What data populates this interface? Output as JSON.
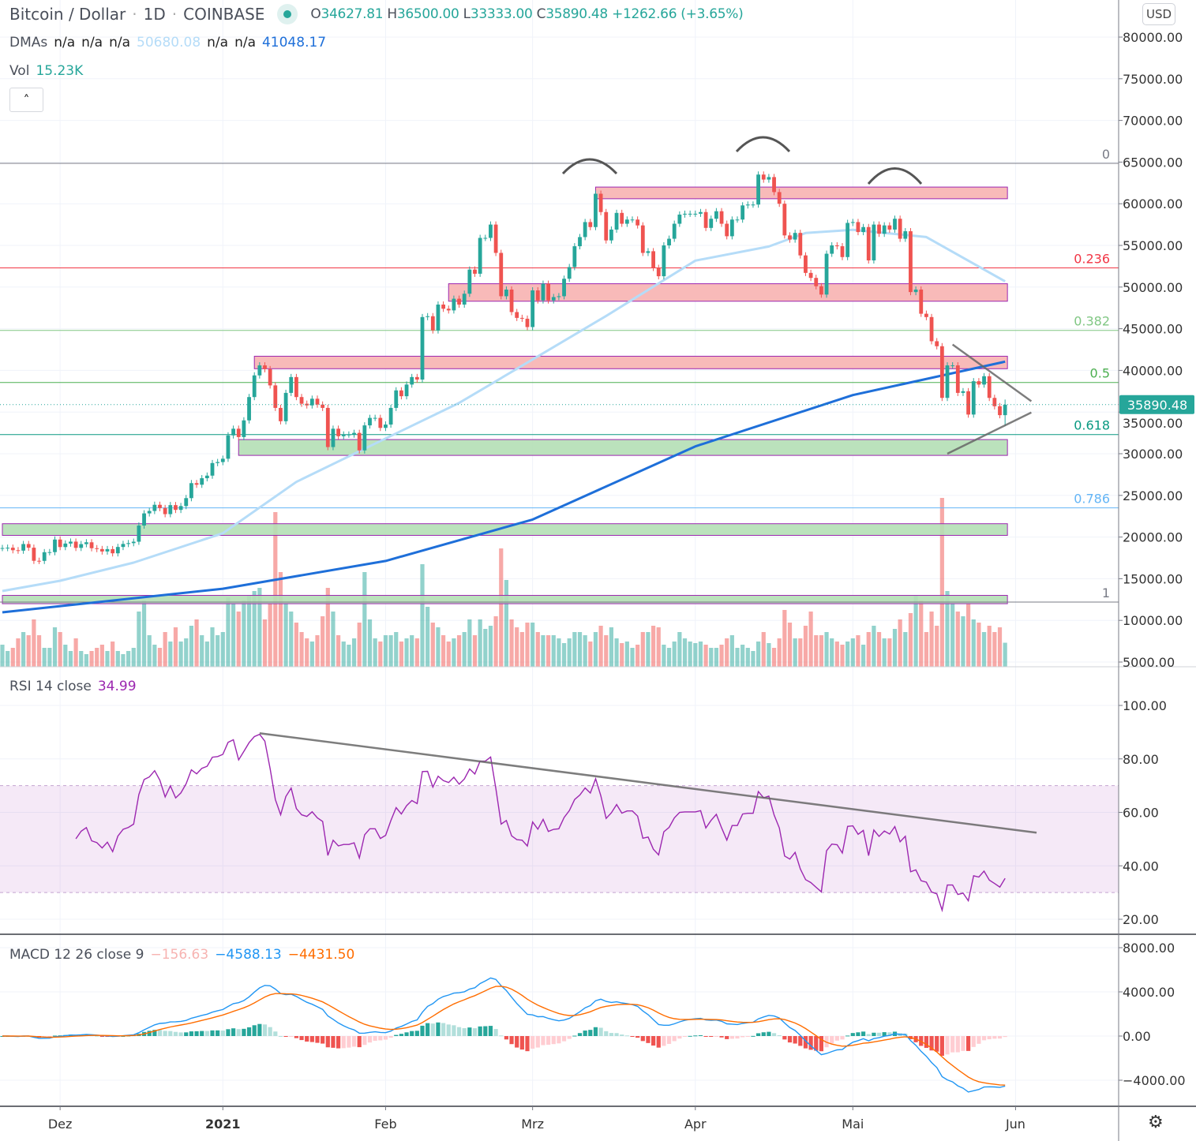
{
  "header": {
    "symbol": "Bitcoin / Dollar",
    "interval": "1D",
    "exchange": "COINBASE",
    "o_label": "O",
    "o_value": "34627.81",
    "h_label": "H",
    "h_value": "36500.00",
    "l_label": "L",
    "l_value": "33333.00",
    "c_label": "C",
    "c_value": "35890.48",
    "change": "+1262.66 (+3.65%)",
    "dmas_label": "DMAs",
    "dmas_values": [
      "n/a",
      "n/a",
      "n/a",
      "50680.08",
      "n/a",
      "n/a",
      "41048.17"
    ],
    "vol_label": "Vol",
    "vol_value": "15.23K",
    "collapse_icon": "chevron-up",
    "currency": "USD"
  },
  "colors": {
    "up": "#26a69a",
    "down": "#ef5350",
    "ma50": "#b5dcf8",
    "ma200": "#1e6fd9",
    "rsi": "#9c27b0",
    "macd": "#2196f3",
    "signal": "#ff6d00",
    "zone_red": "#f7b3b1",
    "zone_green": "#b4dfb5",
    "zone_border": "#9c27b0"
  },
  "chart_data": [
    {
      "type": "candlestick",
      "title": "Bitcoin / Dollar · 1D · COINBASE",
      "start_date": "2020-11-20",
      "y_ticks": [
        80000,
        75000,
        70000,
        65000,
        60000,
        55000,
        50000,
        45000,
        40000,
        35000,
        30000,
        25000,
        20000,
        15000,
        10000,
        5000
      ],
      "y_tick_labels": [
        "80000.00",
        "75000.00",
        "70000.00",
        "65000.00",
        "60000.00",
        "55000.00",
        "50000.00",
        "45000.00",
        "40000.00",
        "35000.00",
        "30000.00",
        "25000.00",
        "20000.00",
        "15000.00",
        "10000.00",
        "5000.00"
      ],
      "x_ticks": [
        {
          "date": "2020-12-01",
          "label": "Dez"
        },
        {
          "date": "2021-01-01",
          "label": "2021"
        },
        {
          "date": "2021-02-01",
          "label": "Feb"
        },
        {
          "date": "2021-03-01",
          "label": "Mrz"
        },
        {
          "date": "2021-04-01",
          "label": "Apr"
        },
        {
          "date": "2021-05-01",
          "label": "Mai"
        },
        {
          "date": "2021-06-01",
          "label": "Jun"
        }
      ],
      "close": [
        18680,
        18720,
        18420,
        18370,
        19160,
        18720,
        17150,
        17140,
        18180,
        18190,
        19700,
        18800,
        19220,
        19450,
        18700,
        19150,
        19370,
        18660,
        18560,
        18270,
        18550,
        18050,
        18810,
        19170,
        19270,
        19440,
        21380,
        22840,
        23130,
        23870,
        23480,
        22750,
        23830,
        23260,
        23720,
        24670,
        26470,
        26280,
        27060,
        27370,
        28880,
        29000,
        29400,
        32200,
        33000,
        32000,
        34000,
        36800,
        39400,
        40600,
        40150,
        38200,
        35500,
        33900,
        37300,
        39200,
        36800,
        36000,
        35800,
        36600,
        35900,
        35500,
        30800,
        33000,
        32100,
        32300,
        32300,
        32500,
        30400,
        33400,
        34300,
        34300,
        33100,
        33500,
        35500,
        37600,
        36900,
        38300,
        39200,
        38900,
        46400,
        46500,
        44800,
        47900,
        47400,
        47200,
        48600,
        47900,
        49200,
        52100,
        51600,
        55900,
        55900,
        57500,
        54100,
        48900,
        49700,
        47000,
        46300,
        46200,
        45200,
        49600,
        48400,
        50400,
        48400,
        48800,
        48900,
        51000,
        52400,
        54900,
        56000,
        57800,
        57200,
        61200,
        59000,
        55600,
        56900,
        58900,
        57600,
        58100,
        58100,
        57400,
        54100,
        54300,
        52300,
        51300,
        55000,
        55800,
        57600,
        58700,
        58800,
        58800,
        58800,
        59000,
        57100,
        58200,
        59100,
        57600,
        56100,
        58100,
        58100,
        59800,
        59900,
        59900,
        63500,
        62900,
        63200,
        61400,
        60000,
        56200,
        55700,
        56500,
        53800,
        51700,
        51100,
        50100,
        49100,
        54000,
        55000,
        54900,
        53600,
        57700,
        57800,
        56600,
        57200,
        53200,
        57500,
        56400,
        57400,
        56900,
        58200,
        55800,
        56700,
        49400,
        49700,
        46800,
        46400,
        43500,
        42900,
        36700,
        40600,
        40600,
        37300,
        37500,
        34700,
        38700,
        38300,
        39300,
        36700,
        35700,
        34627.81,
        35890.48
      ],
      "last": {
        "open": 34627.81,
        "high": 36500.0,
        "low": 33333.0,
        "close": 35890.48,
        "label": "35890.48"
      },
      "volume_k": [
        14,
        10,
        12,
        18,
        22,
        20,
        30,
        20,
        12,
        12,
        25,
        22,
        14,
        10,
        18,
        10,
        8,
        10,
        12,
        14,
        10,
        16,
        10,
        8,
        10,
        12,
        35,
        42,
        20,
        14,
        12,
        22,
        16,
        25,
        16,
        18,
        26,
        30,
        20,
        16,
        25,
        20,
        22,
        44,
        40,
        35,
        42,
        45,
        48,
        50,
        30,
        40,
        98,
        60,
        40,
        35,
        28,
        22,
        18,
        16,
        20,
        32,
        50,
        35,
        20,
        16,
        14,
        18,
        28,
        60,
        30,
        18,
        16,
        20,
        20,
        22,
        16,
        18,
        20,
        18,
        65,
        38,
        28,
        25,
        20,
        16,
        18,
        20,
        22,
        30,
        20,
        30,
        24,
        26,
        32,
        75,
        55,
        30,
        25,
        22,
        28,
        28,
        22,
        20,
        20,
        20,
        18,
        15,
        18,
        22,
        22,
        20,
        16,
        22,
        26,
        20,
        25,
        18,
        15,
        16,
        12,
        14,
        22,
        22,
        26,
        25,
        14,
        12,
        16,
        22,
        18,
        16,
        15,
        16,
        14,
        12,
        12,
        14,
        18,
        20,
        12,
        14,
        12,
        10,
        16,
        22,
        15,
        12,
        18,
        36,
        28,
        18,
        18,
        26,
        35,
        20,
        20,
        22,
        18,
        16,
        14,
        16,
        18,
        20,
        14,
        22,
        26,
        22,
        18,
        18,
        24,
        30,
        22,
        34,
        45,
        42,
        22,
        35,
        26,
        107,
        48,
        40,
        35,
        32,
        40,
        30,
        28,
        22,
        26,
        22,
        25,
        15.23
      ],
      "ma50": [
        [
          "2020-11-20",
          13520
        ],
        [
          "2020-12-01",
          14750
        ],
        [
          "2020-12-15",
          16930
        ],
        [
          "2021-01-01",
          20450
        ],
        [
          "2021-01-15",
          26620
        ],
        [
          "2021-02-01",
          31830
        ],
        [
          "2021-02-15",
          36100
        ],
        [
          "2021-03-01",
          41310
        ],
        [
          "2021-03-15",
          46530
        ],
        [
          "2021-04-01",
          53170
        ],
        [
          "2021-04-15",
          54870
        ],
        [
          "2021-04-22",
          56490
        ],
        [
          "2021-05-01",
          56870
        ],
        [
          "2021-05-15",
          56000
        ],
        [
          "2021-05-30",
          50680.08
        ]
      ],
      "ma200": [
        [
          "2020-11-20",
          10970
        ],
        [
          "2021-01-01",
          13800
        ],
        [
          "2021-02-01",
          17130
        ],
        [
          "2021-03-01",
          22100
        ],
        [
          "2021-04-01",
          30880
        ],
        [
          "2021-05-01",
          37040
        ],
        [
          "2021-05-30",
          41048.17
        ]
      ],
      "fib_levels": [
        {
          "label": "0",
          "price": 64850,
          "color": "#787b86"
        },
        {
          "label": "0.236",
          "price": 52300,
          "color": "#f23645"
        },
        {
          "label": "0.382",
          "price": 44800,
          "color": "#81c784"
        },
        {
          "label": "0.5",
          "price": 38550,
          "color": "#4caf50"
        },
        {
          "label": "0.618",
          "price": 32300,
          "color": "#089981"
        },
        {
          "label": "0.786",
          "price": 23500,
          "color": "#64b5f6"
        },
        {
          "label": "1",
          "price": 12200,
          "color": "#787b86"
        }
      ],
      "zones": [
        {
          "from": "2021-03-13",
          "to": "2021-05-30",
          "low": 60600,
          "high": 62000,
          "kind": "resistance"
        },
        {
          "from": "2021-02-13",
          "to": "2021-05-30",
          "low": 48300,
          "high": 50400,
          "kind": "resistance"
        },
        {
          "from": "2021-01-07",
          "to": "2021-05-30",
          "low": 40200,
          "high": 41700,
          "kind": "resistance"
        },
        {
          "from": "2021-01-04",
          "to": "2021-05-30",
          "low": 29800,
          "high": 31700,
          "kind": "support"
        },
        {
          "from": "2020-11-20",
          "to": "2021-05-30",
          "low": 20200,
          "high": 21600,
          "kind": "support"
        },
        {
          "from": "2020-11-20",
          "to": "2021-05-30",
          "low": 12000,
          "high": 13000,
          "kind": "support"
        }
      ],
      "trendlines": [
        [
          [
            "2021-05-20",
            43100
          ],
          [
            "2021-06-04",
            36300
          ]
        ],
        [
          [
            "2021-05-19",
            30000
          ],
          [
            "2021-06-04",
            34950
          ]
        ]
      ]
    },
    {
      "type": "line",
      "title": "RSI 14 close",
      "value_label": "34.99",
      "y_ticks": [
        100,
        80,
        60,
        40,
        20
      ],
      "y_tick_labels": [
        "100.00",
        "80.00",
        "60.00",
        "40.00",
        "20.00"
      ],
      "band": [
        30,
        70
      ],
      "trendline": [
        [
          "2021-01-08",
          89.6
        ],
        [
          "2021-06-05",
          52.4
        ]
      ]
    },
    {
      "type": "line",
      "title": "MACD 12 26 close 9",
      "values": [
        "−156.63",
        "−4588.13",
        "−4431.50"
      ],
      "y_ticks": [
        8000,
        4000,
        0,
        -4000
      ],
      "y_tick_labels": [
        "8000.00",
        "4000.00",
        "0.00",
        "−4000.00"
      ]
    }
  ]
}
